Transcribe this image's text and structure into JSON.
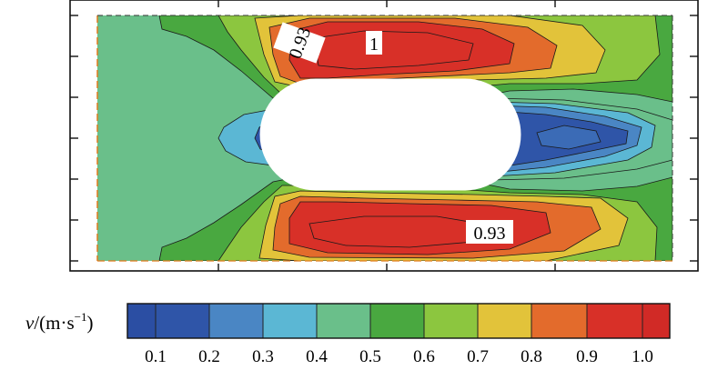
{
  "chart_data": {
    "type": "contour",
    "title": "",
    "colorbar": {
      "label_var": "v",
      "label_unit": "/(m·s",
      "label_exp": "−1",
      "label_close": ")",
      "levels": [
        0.1,
        0.2,
        0.3,
        0.4,
        0.5,
        0.6,
        0.7,
        0.8,
        0.9,
        1.0
      ],
      "tick_labels": [
        "0.1",
        "0.2",
        "0.3",
        "0.4",
        "0.5",
        "0.6",
        "0.7",
        "0.8",
        "0.9",
        "1.0"
      ],
      "colors": [
        "#2b4ea3",
        "#2f55a8",
        "#4a86c4",
        "#5bb7d4",
        "#6abf8a",
        "#49a840",
        "#8cc63f",
        "#e2c33a",
        "#e36b2c",
        "#d83028",
        "#d12a26"
      ]
    },
    "contour_labels": [
      "0.93",
      "1",
      "0.93"
    ],
    "grid": true
  }
}
